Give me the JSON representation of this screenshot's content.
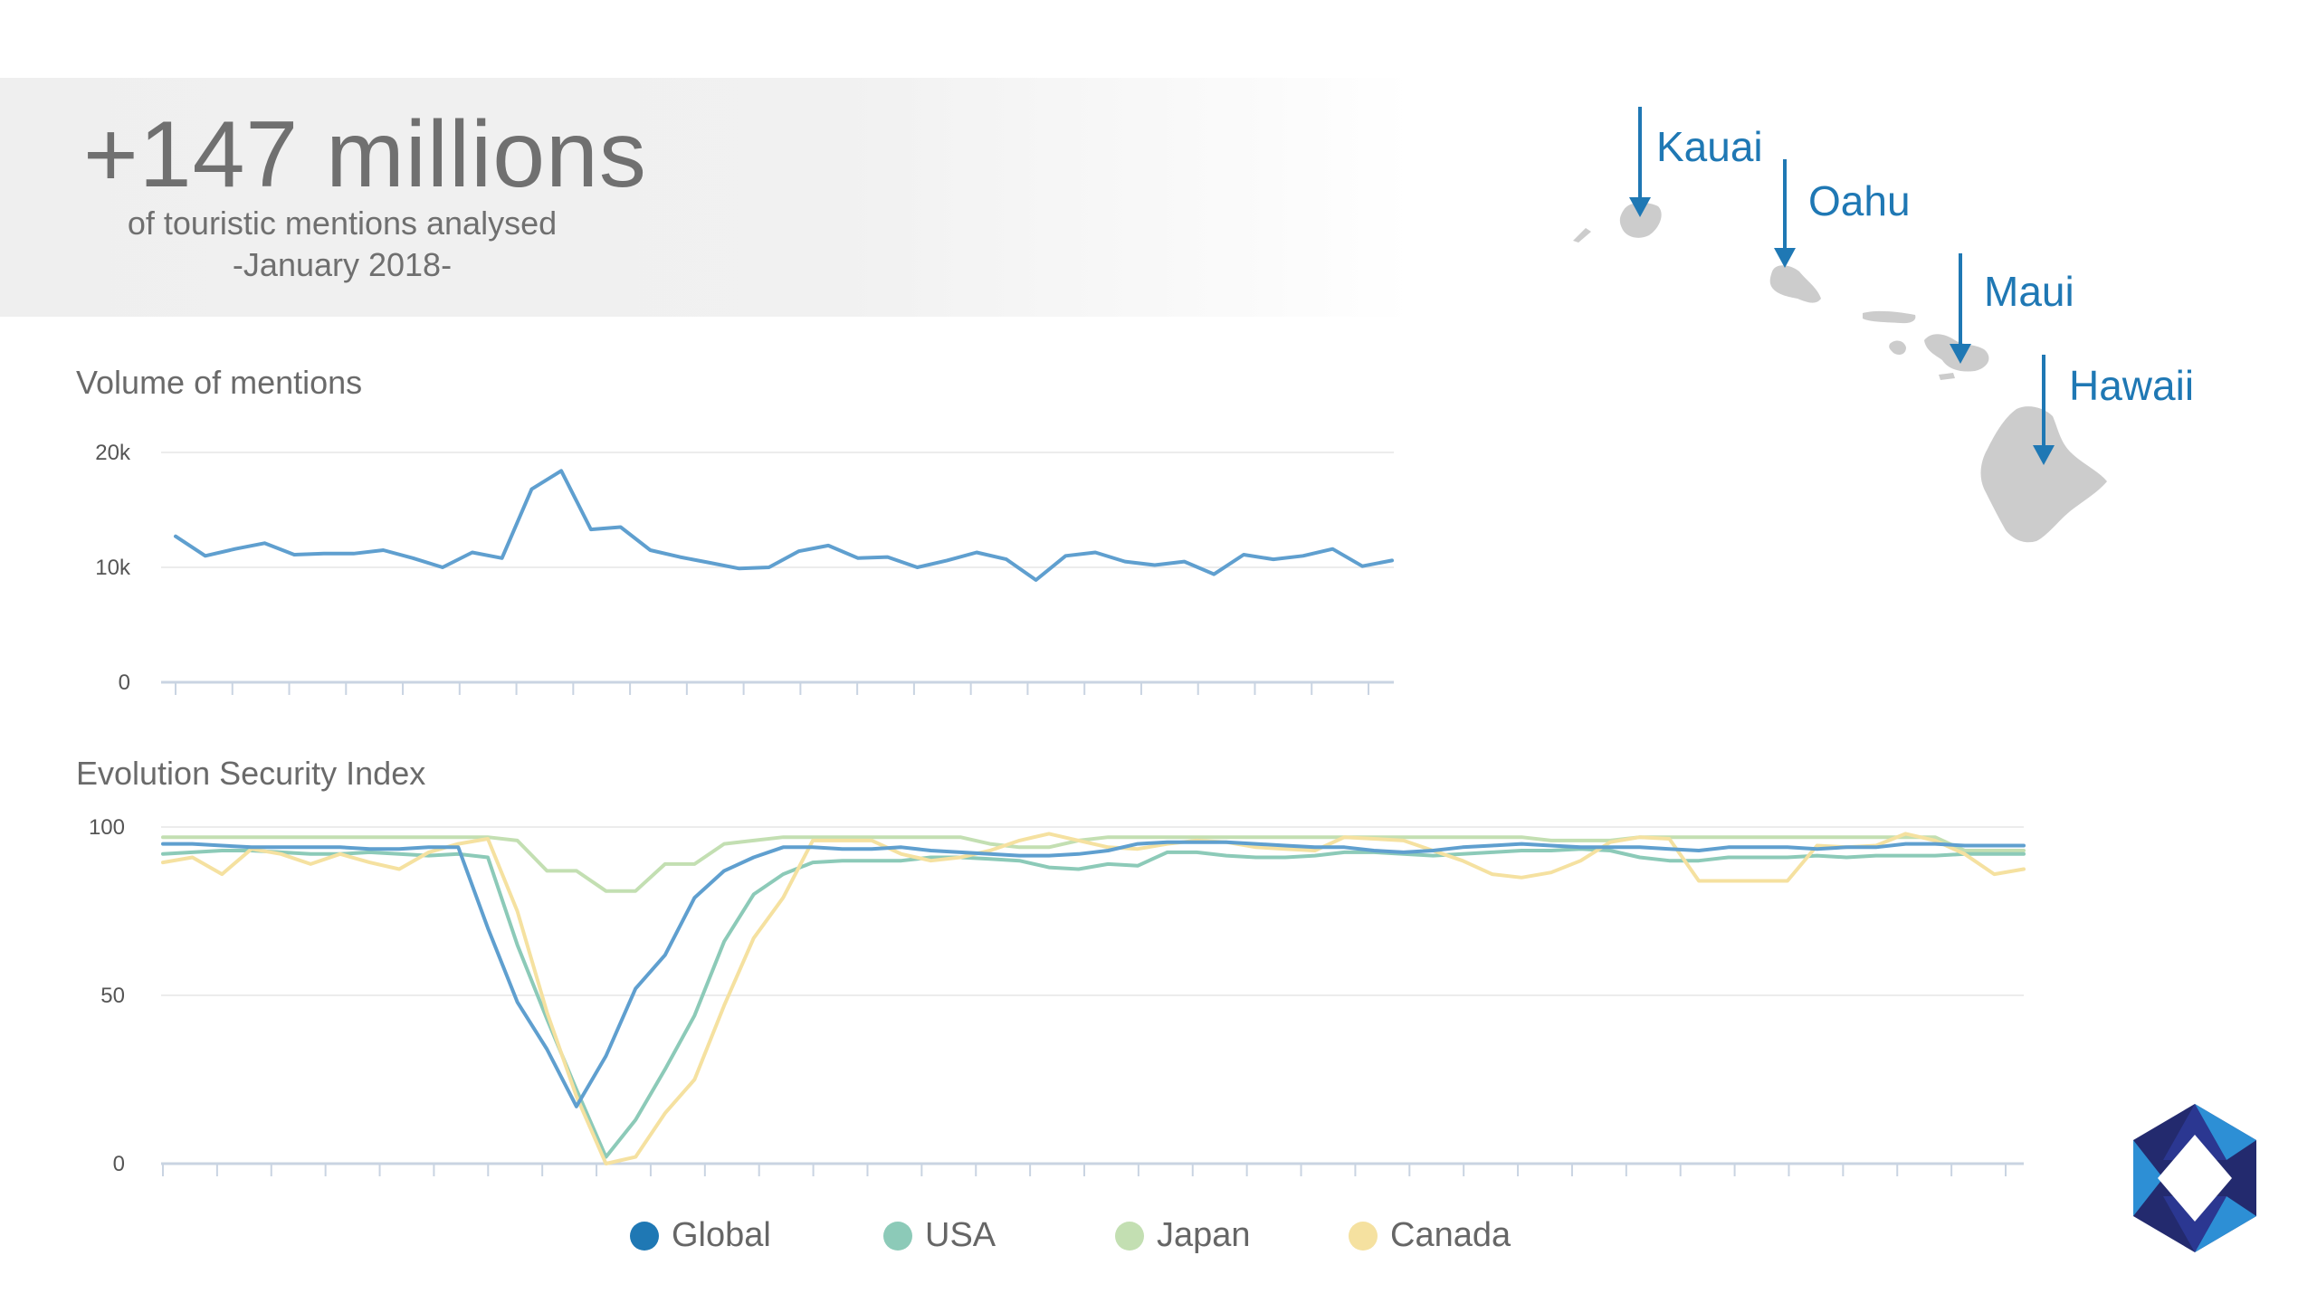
{
  "headline": {
    "figure": "+147 millions",
    "line1": "of touristic mentions analysed",
    "line2": "-January 2018-"
  },
  "islands": [
    "Kauai",
    "Oahu",
    "Maui",
    "Hawaii"
  ],
  "colors": {
    "accent": "#1f78b4",
    "global": "#5f9fcf",
    "usa": "#8ccab8",
    "japan": "#c3dfb2",
    "canada": "#f5e1a0",
    "island_fill": "#cccccc",
    "grid": "#ececec",
    "axis": "#c9d4e2"
  },
  "legend": [
    {
      "name": "Global",
      "color": "#1f78b4"
    },
    {
      "name": "USA",
      "color": "#8ccab8"
    },
    {
      "name": "Japan",
      "color": "#c3dfb2"
    },
    {
      "name": "Canada",
      "color": "#f5e1a0"
    }
  ],
  "chart_data": [
    {
      "type": "line",
      "title": "Volume of mentions",
      "ylim": [
        0,
        20000
      ],
      "yticks": [
        "0",
        "10k",
        "20k"
      ],
      "grid": true,
      "series": [
        {
          "values": [
            12700,
            11000,
            11600,
            12100,
            11100,
            11200,
            11200,
            11500,
            10800,
            10000,
            11300,
            10800,
            16800,
            18400,
            13300,
            13500,
            11500,
            10900,
            10400,
            9900,
            10000,
            11400,
            11900,
            10800,
            10900,
            10000,
            10600,
            11300,
            10700,
            8900,
            11000,
            11300,
            10500,
            10200,
            10500,
            9400,
            11100,
            10700,
            11000,
            11600,
            10100,
            10600
          ]
        }
      ]
    },
    {
      "type": "line",
      "title": "Evolution Security Index",
      "ylim": [
        0,
        100
      ],
      "yticks": [
        "0",
        "50",
        "100"
      ],
      "grid": true,
      "legend_position": "bottom",
      "series": [
        {
          "name": "Global",
          "color": "#5f9fcf",
          "values": [
            95,
            95,
            94.5,
            94,
            94,
            94,
            94,
            93.5,
            93.5,
            94,
            94,
            70,
            48,
            34,
            17,
            32,
            52,
            62,
            79,
            87,
            91,
            94,
            94,
            93.5,
            93.5,
            94,
            93,
            92.5,
            92,
            91.5,
            91.5,
            92,
            93,
            95,
            95.5,
            95.5,
            95.5,
            95,
            94.5,
            94,
            94,
            93,
            92.5,
            93,
            94,
            94.5,
            95,
            94.5,
            94,
            94,
            94,
            93.5,
            93,
            94,
            94,
            94,
            93.5,
            94,
            94,
            95,
            95,
            94.5,
            94.5,
            94.5
          ]
        },
        {
          "name": "USA",
          "color": "#8ccab8",
          "values": [
            92,
            92.5,
            93,
            93,
            92.5,
            92,
            92,
            92.5,
            92,
            91.5,
            92,
            91,
            65,
            43,
            22,
            2,
            13,
            28,
            44,
            66,
            80,
            86,
            89.5,
            90,
            90,
            90,
            91,
            91,
            90.5,
            90,
            88,
            87.5,
            89,
            88.5,
            92.5,
            92.5,
            91.5,
            91,
            91,
            91.5,
            92.5,
            92.5,
            92,
            91.5,
            92,
            92.5,
            93,
            93,
            93.5,
            93,
            91,
            90,
            90,
            91,
            91,
            91,
            91.5,
            91,
            91.5,
            91.5,
            91.5,
            92,
            92,
            92
          ]
        },
        {
          "name": "Japan",
          "color": "#c3dfb2",
          "values": [
            97,
            97,
            97,
            97,
            97,
            97,
            97,
            97,
            97,
            97,
            97,
            97,
            96,
            87,
            87,
            81,
            81,
            89,
            89,
            95,
            96,
            97,
            97,
            97,
            97,
            97,
            97,
            97,
            95,
            94,
            94,
            96,
            97,
            97,
            97,
            97,
            97,
            97,
            97,
            97,
            97,
            97,
            97,
            97,
            97,
            97,
            97,
            96,
            96,
            96,
            97,
            97,
            97,
            97,
            97,
            97,
            97,
            97,
            97,
            97,
            97,
            93,
            93,
            93
          ]
        },
        {
          "name": "Canada",
          "color": "#f5e1a0",
          "values": [
            89.5,
            91,
            86,
            93.5,
            92,
            89,
            92,
            89.5,
            87.5,
            92.5,
            95,
            96.5,
            75,
            45,
            20,
            0,
            2,
            15,
            25,
            47,
            67,
            79,
            96,
            96,
            96,
            92,
            90,
            91,
            93,
            96,
            98,
            96,
            94,
            93.5,
            95,
            96,
            95.5,
            94,
            93.5,
            93,
            97,
            96.5,
            96,
            93,
            90,
            86,
            85,
            86.5,
            90,
            95.5,
            97,
            96.5,
            84,
            84,
            84,
            84,
            94.5,
            94,
            94.5,
            98,
            96,
            92,
            86,
            87.5
          ]
        }
      ]
    }
  ]
}
